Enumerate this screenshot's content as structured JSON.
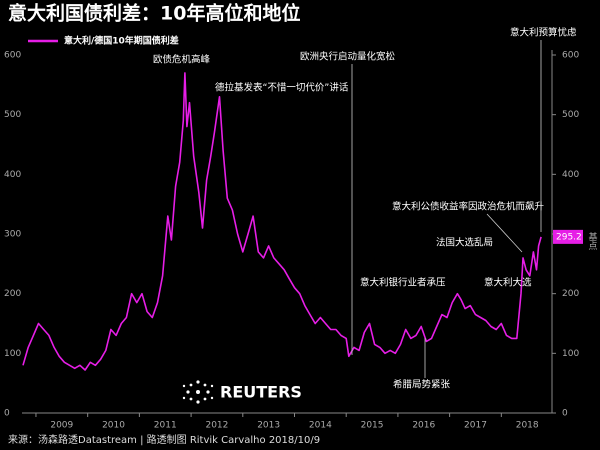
{
  "chart_data": {
    "type": "line",
    "title": "意大利国债利差：10年高位和地位",
    "source": "来源：汤森路透Datastream | 路透制图 Ritvik Carvalho 2018/10/9",
    "logo": "REUTERS",
    "y2_label": "基点",
    "xlim": [
      2008.73,
      2018.98
    ],
    "xticks": [
      {
        "value": 2009.5,
        "label": "2009"
      },
      {
        "value": 2010.5,
        "label": "2010"
      },
      {
        "value": 2011.5,
        "label": "2011"
      },
      {
        "value": 2012.5,
        "label": "2012"
      },
      {
        "value": 2013.5,
        "label": "2013"
      },
      {
        "value": 2014.5,
        "label": "2014"
      },
      {
        "value": 2015.5,
        "label": "2015"
      },
      {
        "value": 2016.5,
        "label": "2016"
      },
      {
        "value": 2017.5,
        "label": "2017"
      },
      {
        "value": 2018.5,
        "label": "2018"
      }
    ],
    "ylim": [
      0,
      600
    ],
    "yticks": [
      0,
      100,
      200,
      300,
      400,
      500,
      600
    ],
    "y2lim": [
      0,
      600
    ],
    "y2ticks": [
      0,
      100,
      200,
      300,
      400,
      500,
      600
    ],
    "grid": false,
    "annotations": [
      "欧债危机高峰",
      "德拉基发表“不惜一切代价”讲话",
      "欧洲央行启动量化宽松",
      "意大利预算忧虑",
      "意大利公债收益率因政治危机而飙升",
      "法国大选乱局",
      "意大利银行业者承压",
      "意大利大选",
      "希腊局势紧张"
    ],
    "series": [
      {
        "name": "意大利/德国10年期国债利差",
        "color": "#e61ee6",
        "x": [
          2008.75,
          2008.85,
          2008.95,
          2009.05,
          2009.15,
          2009.25,
          2009.35,
          2009.45,
          2009.55,
          2009.65,
          2009.75,
          2009.85,
          2009.95,
          2010.05,
          2010.15,
          2010.25,
          2010.35,
          2010.45,
          2010.55,
          2010.65,
          2010.75,
          2010.85,
          2010.95,
          2011.05,
          2011.15,
          2011.25,
          2011.35,
          2011.45,
          2011.55,
          2011.62,
          2011.7,
          2011.78,
          2011.85,
          2011.88,
          2011.92,
          2011.97,
          2012.05,
          2012.15,
          2012.22,
          2012.3,
          2012.38,
          2012.45,
          2012.55,
          2012.62,
          2012.7,
          2012.8,
          2012.9,
          2013.0,
          2013.1,
          2013.2,
          2013.3,
          2013.4,
          2013.5,
          2013.6,
          2013.7,
          2013.8,
          2013.9,
          2014.0,
          2014.1,
          2014.2,
          2014.3,
          2014.4,
          2014.5,
          2014.6,
          2014.7,
          2014.8,
          2014.9,
          2015.0,
          2015.05,
          2015.15,
          2015.25,
          2015.35,
          2015.45,
          2015.55,
          2015.65,
          2015.75,
          2015.85,
          2015.95,
          2016.05,
          2016.15,
          2016.25,
          2016.35,
          2016.45,
          2016.55,
          2016.65,
          2016.75,
          2016.85,
          2016.95,
          2017.05,
          2017.15,
          2017.22,
          2017.3,
          2017.4,
          2017.5,
          2017.6,
          2017.7,
          2017.8,
          2017.9,
          2018.0,
          2018.1,
          2018.2,
          2018.3,
          2018.38,
          2018.42,
          2018.48,
          2018.55,
          2018.62,
          2018.68,
          2018.72,
          2018.77
        ],
        "values": [
          80,
          110,
          130,
          150,
          140,
          130,
          110,
          95,
          85,
          80,
          75,
          80,
          72,
          85,
          80,
          90,
          105,
          140,
          130,
          150,
          160,
          200,
          185,
          200,
          170,
          160,
          185,
          230,
          330,
          290,
          380,
          420,
          490,
          570,
          480,
          520,
          430,
          370,
          310,
          390,
          430,
          470,
          530,
          440,
          360,
          340,
          300,
          270,
          300,
          330,
          270,
          260,
          280,
          260,
          250,
          240,
          225,
          210,
          200,
          180,
          165,
          150,
          160,
          150,
          140,
          140,
          130,
          125,
          95,
          110,
          105,
          135,
          150,
          115,
          110,
          100,
          105,
          100,
          115,
          140,
          125,
          130,
          145,
          120,
          125,
          145,
          165,
          160,
          185,
          200,
          190,
          175,
          180,
          165,
          160,
          155,
          145,
          140,
          150,
          130,
          125,
          125,
          200,
          260,
          240,
          230,
          270,
          240,
          280,
          295.2
        ]
      }
    ]
  }
}
